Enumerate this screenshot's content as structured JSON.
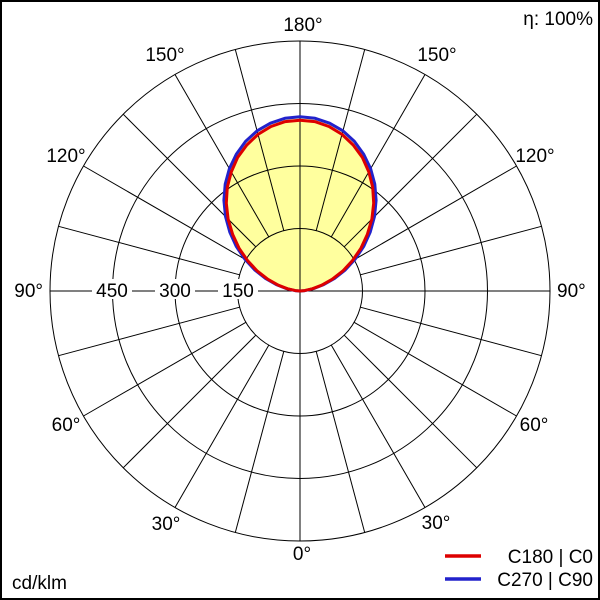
{
  "header": {
    "efficiency": "η: 100%"
  },
  "footer": {
    "units": "cd/klm"
  },
  "labels": {
    "g180": "180°",
    "g150": "150°",
    "g120": "120°",
    "g90": "90°",
    "g60": "60°",
    "g30": "30°",
    "g0": "0°"
  },
  "chart_data": {
    "type": "polar-line",
    "units": "cd/klm",
    "efficiency_percent": 100,
    "angle_labels_deg": [
      0,
      30,
      60,
      90,
      120,
      150,
      180
    ],
    "angle_step_deg": 15,
    "radial_circles": [
      150,
      300,
      450,
      600
    ],
    "radial_tick_labels": [
      150,
      300,
      450
    ],
    "radial_max": 600,
    "fill_color": "#ffff9e",
    "gamma_deg": [
      90,
      95,
      100,
      105,
      110,
      115,
      120,
      125,
      130,
      135,
      140,
      145,
      150,
      155,
      160,
      165,
      170,
      175,
      180,
      185,
      190,
      195,
      200,
      205,
      210,
      215,
      220,
      225,
      230,
      235,
      240,
      245,
      250,
      255,
      260,
      265,
      270
    ],
    "series": [
      {
        "name": "C180 | C0",
        "color": "#dd0000",
        "values": [
          0,
          11,
          30,
          54,
          82,
          113,
          145,
          178,
          211,
          244,
          275,
          304,
          330,
          354,
          373,
          389,
          401,
          408,
          410,
          408,
          401,
          389,
          373,
          354,
          330,
          304,
          275,
          244,
          211,
          178,
          145,
          113,
          82,
          54,
          30,
          11,
          0
        ]
      },
      {
        "name": "C270 | C90",
        "color": "#2222cc",
        "values": [
          0,
          12,
          33,
          59,
          88,
          120,
          153,
          187,
          220,
          253,
          284,
          313,
          339,
          362,
          382,
          398,
          409,
          416,
          418,
          416,
          409,
          398,
          382,
          362,
          339,
          313,
          284,
          253,
          220,
          187,
          153,
          120,
          88,
          59,
          33,
          12,
          0
        ]
      }
    ]
  }
}
